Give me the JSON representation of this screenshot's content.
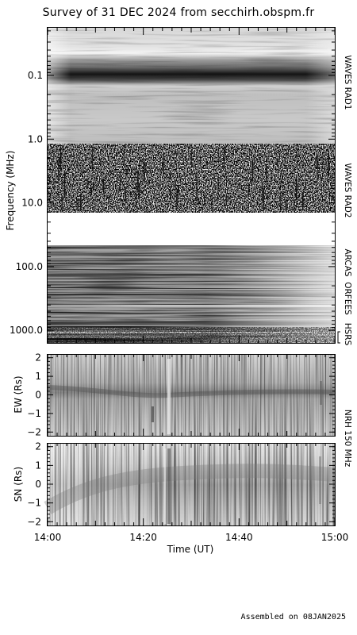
{
  "title": "Survey of 31 DEC 2024 from secchirh.obspm.fr",
  "footer": "Assembled on 08JAN2025",
  "colors": {
    "frame": "#000000",
    "background": "#ffffff"
  },
  "chart_data": [
    {
      "type": "heatmap",
      "name": "dynamic-spectrum",
      "colormap": "grayscale",
      "ylabel": "Frequency (MHz)",
      "yscale": "log",
      "y_reversed": true,
      "ylim": [
        0.02,
        1400
      ],
      "yticks": [
        {
          "value": 0.1,
          "label": "0.1"
        },
        {
          "value": 1.0,
          "label": "1.0"
        },
        {
          "value": 10.0,
          "label": "10.0"
        },
        {
          "value": 100.0,
          "label": "100.0"
        },
        {
          "value": 1000.0,
          "label": "1000.0"
        }
      ],
      "instruments": [
        {
          "label": "WAVES RAD1",
          "freq_range": [
            0.02,
            1.0
          ]
        },
        {
          "label": "WAVES RAD2",
          "freq_range": [
            1.0,
            14.0
          ]
        },
        {
          "label": "ARCAS",
          "freq_range": [
            45,
            90
          ]
        },
        {
          "label": "ORFEES",
          "freq_range": [
            140,
            1000
          ]
        },
        {
          "label": "HSRS",
          "freq_range": [
            1000,
            1400
          ]
        }
      ]
    },
    {
      "type": "heatmap",
      "name": "ew-position",
      "colormap": "grayscale",
      "ylabel": "EW (Rs)",
      "ylim": [
        -2.2,
        2.2
      ],
      "yticks": [
        2,
        1,
        0,
        -1,
        -2
      ]
    },
    {
      "type": "heatmap",
      "name": "sn-position",
      "colormap": "grayscale",
      "ylabel": "SN (Rs)",
      "ylim": [
        -2.2,
        2.2
      ],
      "yticks": [
        2,
        1,
        0,
        -1,
        -2
      ]
    }
  ],
  "nrh_label": "NRH 150 MHz",
  "time_axis": {
    "xlabel": "Time (UT)",
    "range": [
      "14:00",
      "15:00"
    ],
    "ticks": [
      "14:00",
      "14:20",
      "14:40",
      "15:00"
    ]
  }
}
